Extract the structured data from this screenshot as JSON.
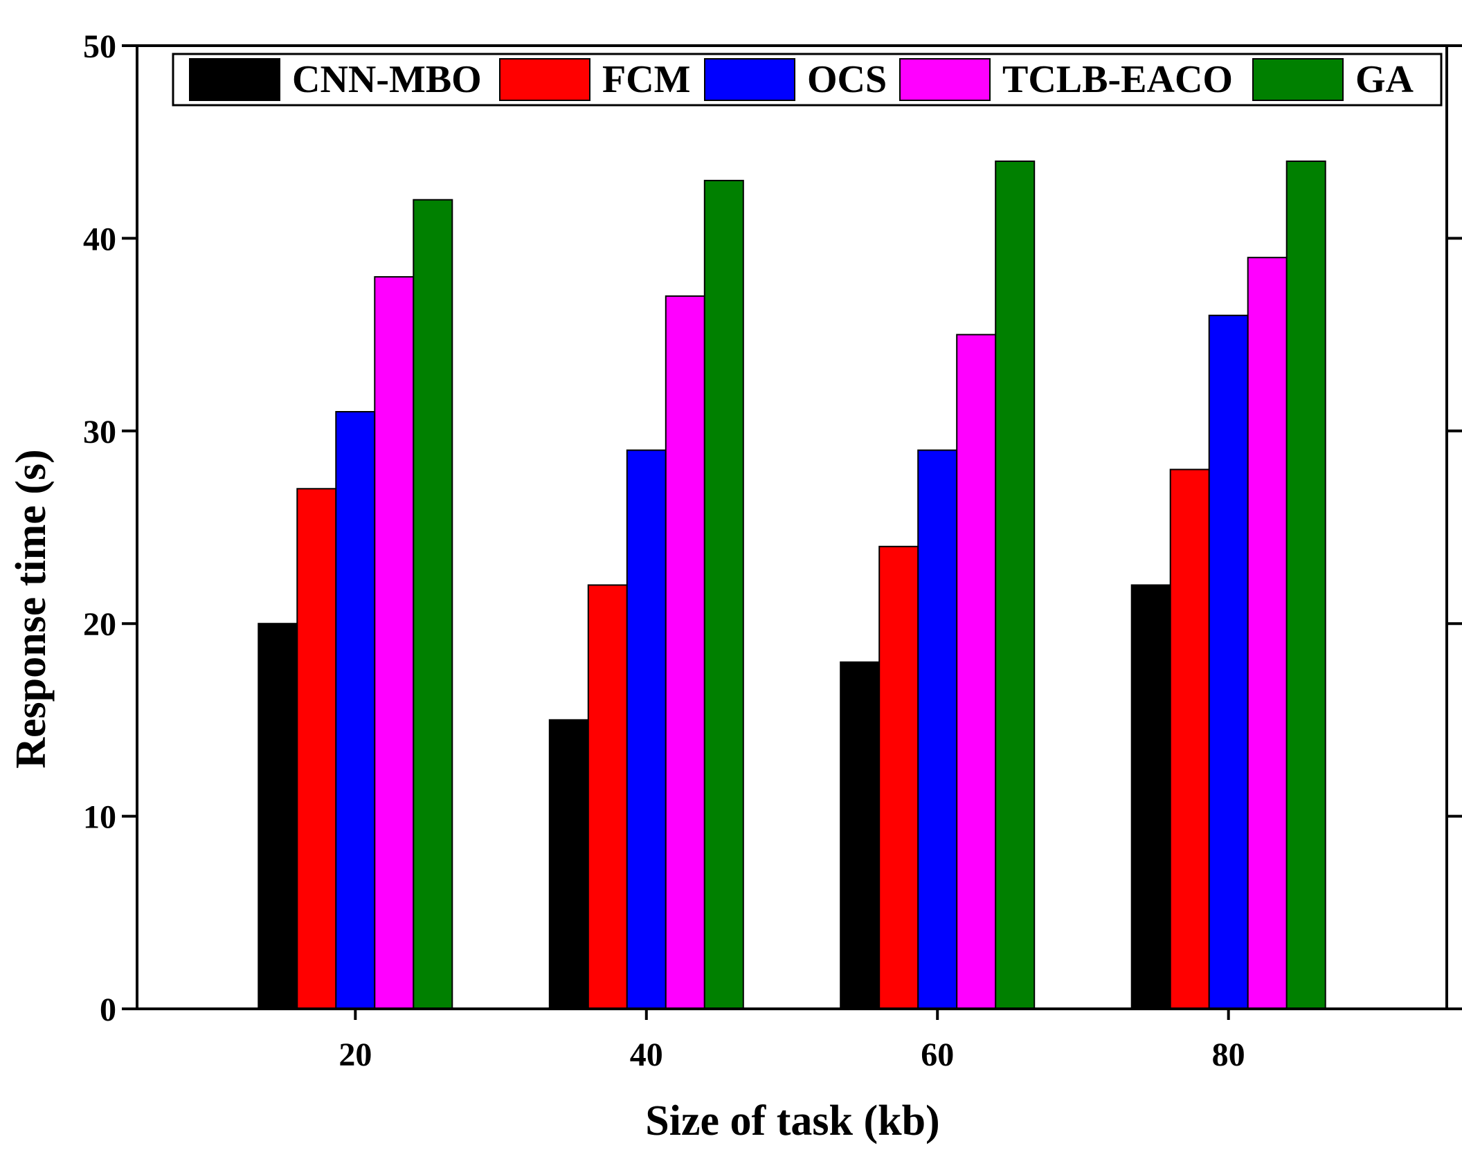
{
  "chart_data": {
    "type": "bar",
    "title": "",
    "xlabel": "Size of task (kb)",
    "ylabel": "Response time (s)",
    "categories": [
      "20",
      "40",
      "60",
      "80"
    ],
    "ylim": [
      0,
      50
    ],
    "yticks": [
      "0",
      "10",
      "20",
      "30",
      "40",
      "50"
    ],
    "grid": false,
    "legend_position": "top",
    "series": [
      {
        "name": "CNN-MBO",
        "color": "#000000",
        "values": [
          20,
          15,
          18,
          22
        ]
      },
      {
        "name": "FCM",
        "color": "#ff0000",
        "values": [
          27,
          22,
          24,
          28
        ]
      },
      {
        "name": "OCS",
        "color": "#0000ff",
        "values": [
          31,
          29,
          29,
          36
        ]
      },
      {
        "name": "TCLB-EACO",
        "color": "#ff00ff",
        "values": [
          38,
          37,
          35,
          39
        ]
      },
      {
        "name": "GA",
        "color": "#008000",
        "values": [
          42,
          43,
          44,
          44
        ]
      }
    ]
  }
}
